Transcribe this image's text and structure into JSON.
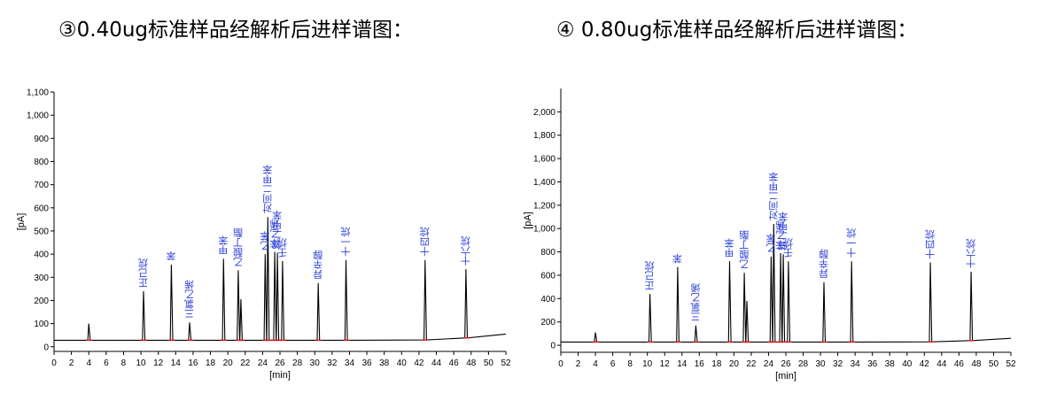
{
  "headings": {
    "left": "③0.40ug标准样品经解析后进样谱图：",
    "right": "④ 0.80ug标准样品经解析后进样谱图："
  },
  "chart_data": [
    {
      "type": "line",
      "xlabel": "[min]",
      "ylabel": "[pA]",
      "xlim": [
        0,
        52
      ],
      "ylim": [
        -20,
        1100
      ],
      "xticks": [
        0,
        2,
        4,
        6,
        8,
        10,
        12,
        14,
        16,
        18,
        20,
        22,
        24,
        26,
        28,
        30,
        32,
        34,
        36,
        38,
        40,
        42,
        44,
        46,
        48,
        50,
        52
      ],
      "yticks": [
        0,
        100,
        200,
        300,
        400,
        500,
        600,
        700,
        800,
        900,
        1000,
        1100
      ],
      "ytick_labels": [
        "0",
        "100",
        "200",
        "300",
        "400",
        "500",
        "600",
        "700",
        "800",
        "900",
        "1,000",
        "1,100"
      ],
      "baseline": 28,
      "baseline_end": 55,
      "peaks": [
        {
          "time": 4.0,
          "height": 100
        },
        {
          "time": 10.3,
          "height": 240,
          "label": "正己烷"
        },
        {
          "time": 13.5,
          "height": 355,
          "label": "苯"
        },
        {
          "time": 15.6,
          "height": 105,
          "label": "三氯乙烯"
        },
        {
          "time": 19.5,
          "height": 380,
          "label": "甲苯"
        },
        {
          "time": 21.2,
          "height": 330,
          "label": "乙酸丁酯"
        },
        {
          "time": 21.5,
          "height": 205
        },
        {
          "time": 24.3,
          "height": 400,
          "label": "乙苯"
        },
        {
          "time": 24.6,
          "height": 560,
          "label": "对间二甲苯"
        },
        {
          "time": 25.4,
          "height": 410,
          "label": "苯乙烯"
        },
        {
          "time": 25.7,
          "height": 405,
          "label": "邻二甲苯"
        },
        {
          "time": 26.3,
          "height": 370,
          "label": "壬烷"
        },
        {
          "time": 30.4,
          "height": 275,
          "label": "异辛醇"
        },
        {
          "time": 33.6,
          "height": 375,
          "label": "十一烷"
        },
        {
          "time": 42.7,
          "height": 375,
          "label": "十四烷"
        },
        {
          "time": 47.4,
          "height": 335,
          "label": "十六烷"
        }
      ]
    },
    {
      "type": "line",
      "xlabel": "[min]",
      "ylabel": "[pA]",
      "xlim": [
        0,
        52
      ],
      "ylim": [
        -60,
        2200
      ],
      "xticks": [
        0,
        2,
        4,
        6,
        8,
        10,
        12,
        14,
        16,
        18,
        20,
        22,
        24,
        26,
        28,
        30,
        32,
        34,
        36,
        38,
        40,
        42,
        44,
        46,
        48,
        50,
        52
      ],
      "yticks": [
        0,
        200,
        400,
        600,
        800,
        1000,
        1200,
        1400,
        1600,
        1800,
        2000
      ],
      "ytick_labels": [
        "0",
        "200",
        "400",
        "600",
        "800",
        "1,000",
        "1,200",
        "1,400",
        "1,600",
        "1,800",
        "2,000"
      ],
      "baseline": 28,
      "baseline_end": 60,
      "peaks": [
        {
          "time": 4.0,
          "height": 110
        },
        {
          "time": 10.3,
          "height": 440,
          "label": "正己烷"
        },
        {
          "time": 13.5,
          "height": 670,
          "label": "苯"
        },
        {
          "time": 15.6,
          "height": 170,
          "label": "三氯乙烯"
        },
        {
          "time": 19.5,
          "height": 720,
          "label": "甲苯"
        },
        {
          "time": 21.2,
          "height": 620,
          "label": "乙酸丁酯"
        },
        {
          "time": 21.5,
          "height": 380
        },
        {
          "time": 24.3,
          "height": 760,
          "label": "乙苯"
        },
        {
          "time": 24.6,
          "height": 1040,
          "label": "对间二甲苯"
        },
        {
          "time": 25.4,
          "height": 790,
          "label": "苯乙烯"
        },
        {
          "time": 25.7,
          "height": 780,
          "label": "邻二甲苯"
        },
        {
          "time": 26.3,
          "height": 720,
          "label": "壬烷"
        },
        {
          "time": 30.4,
          "height": 540,
          "label": "异辛醇"
        },
        {
          "time": 33.6,
          "height": 720,
          "label": "十一烷"
        },
        {
          "time": 42.7,
          "height": 710,
          "label": "十四烷"
        },
        {
          "time": 47.4,
          "height": 630,
          "label": "十六烷"
        }
      ]
    }
  ]
}
